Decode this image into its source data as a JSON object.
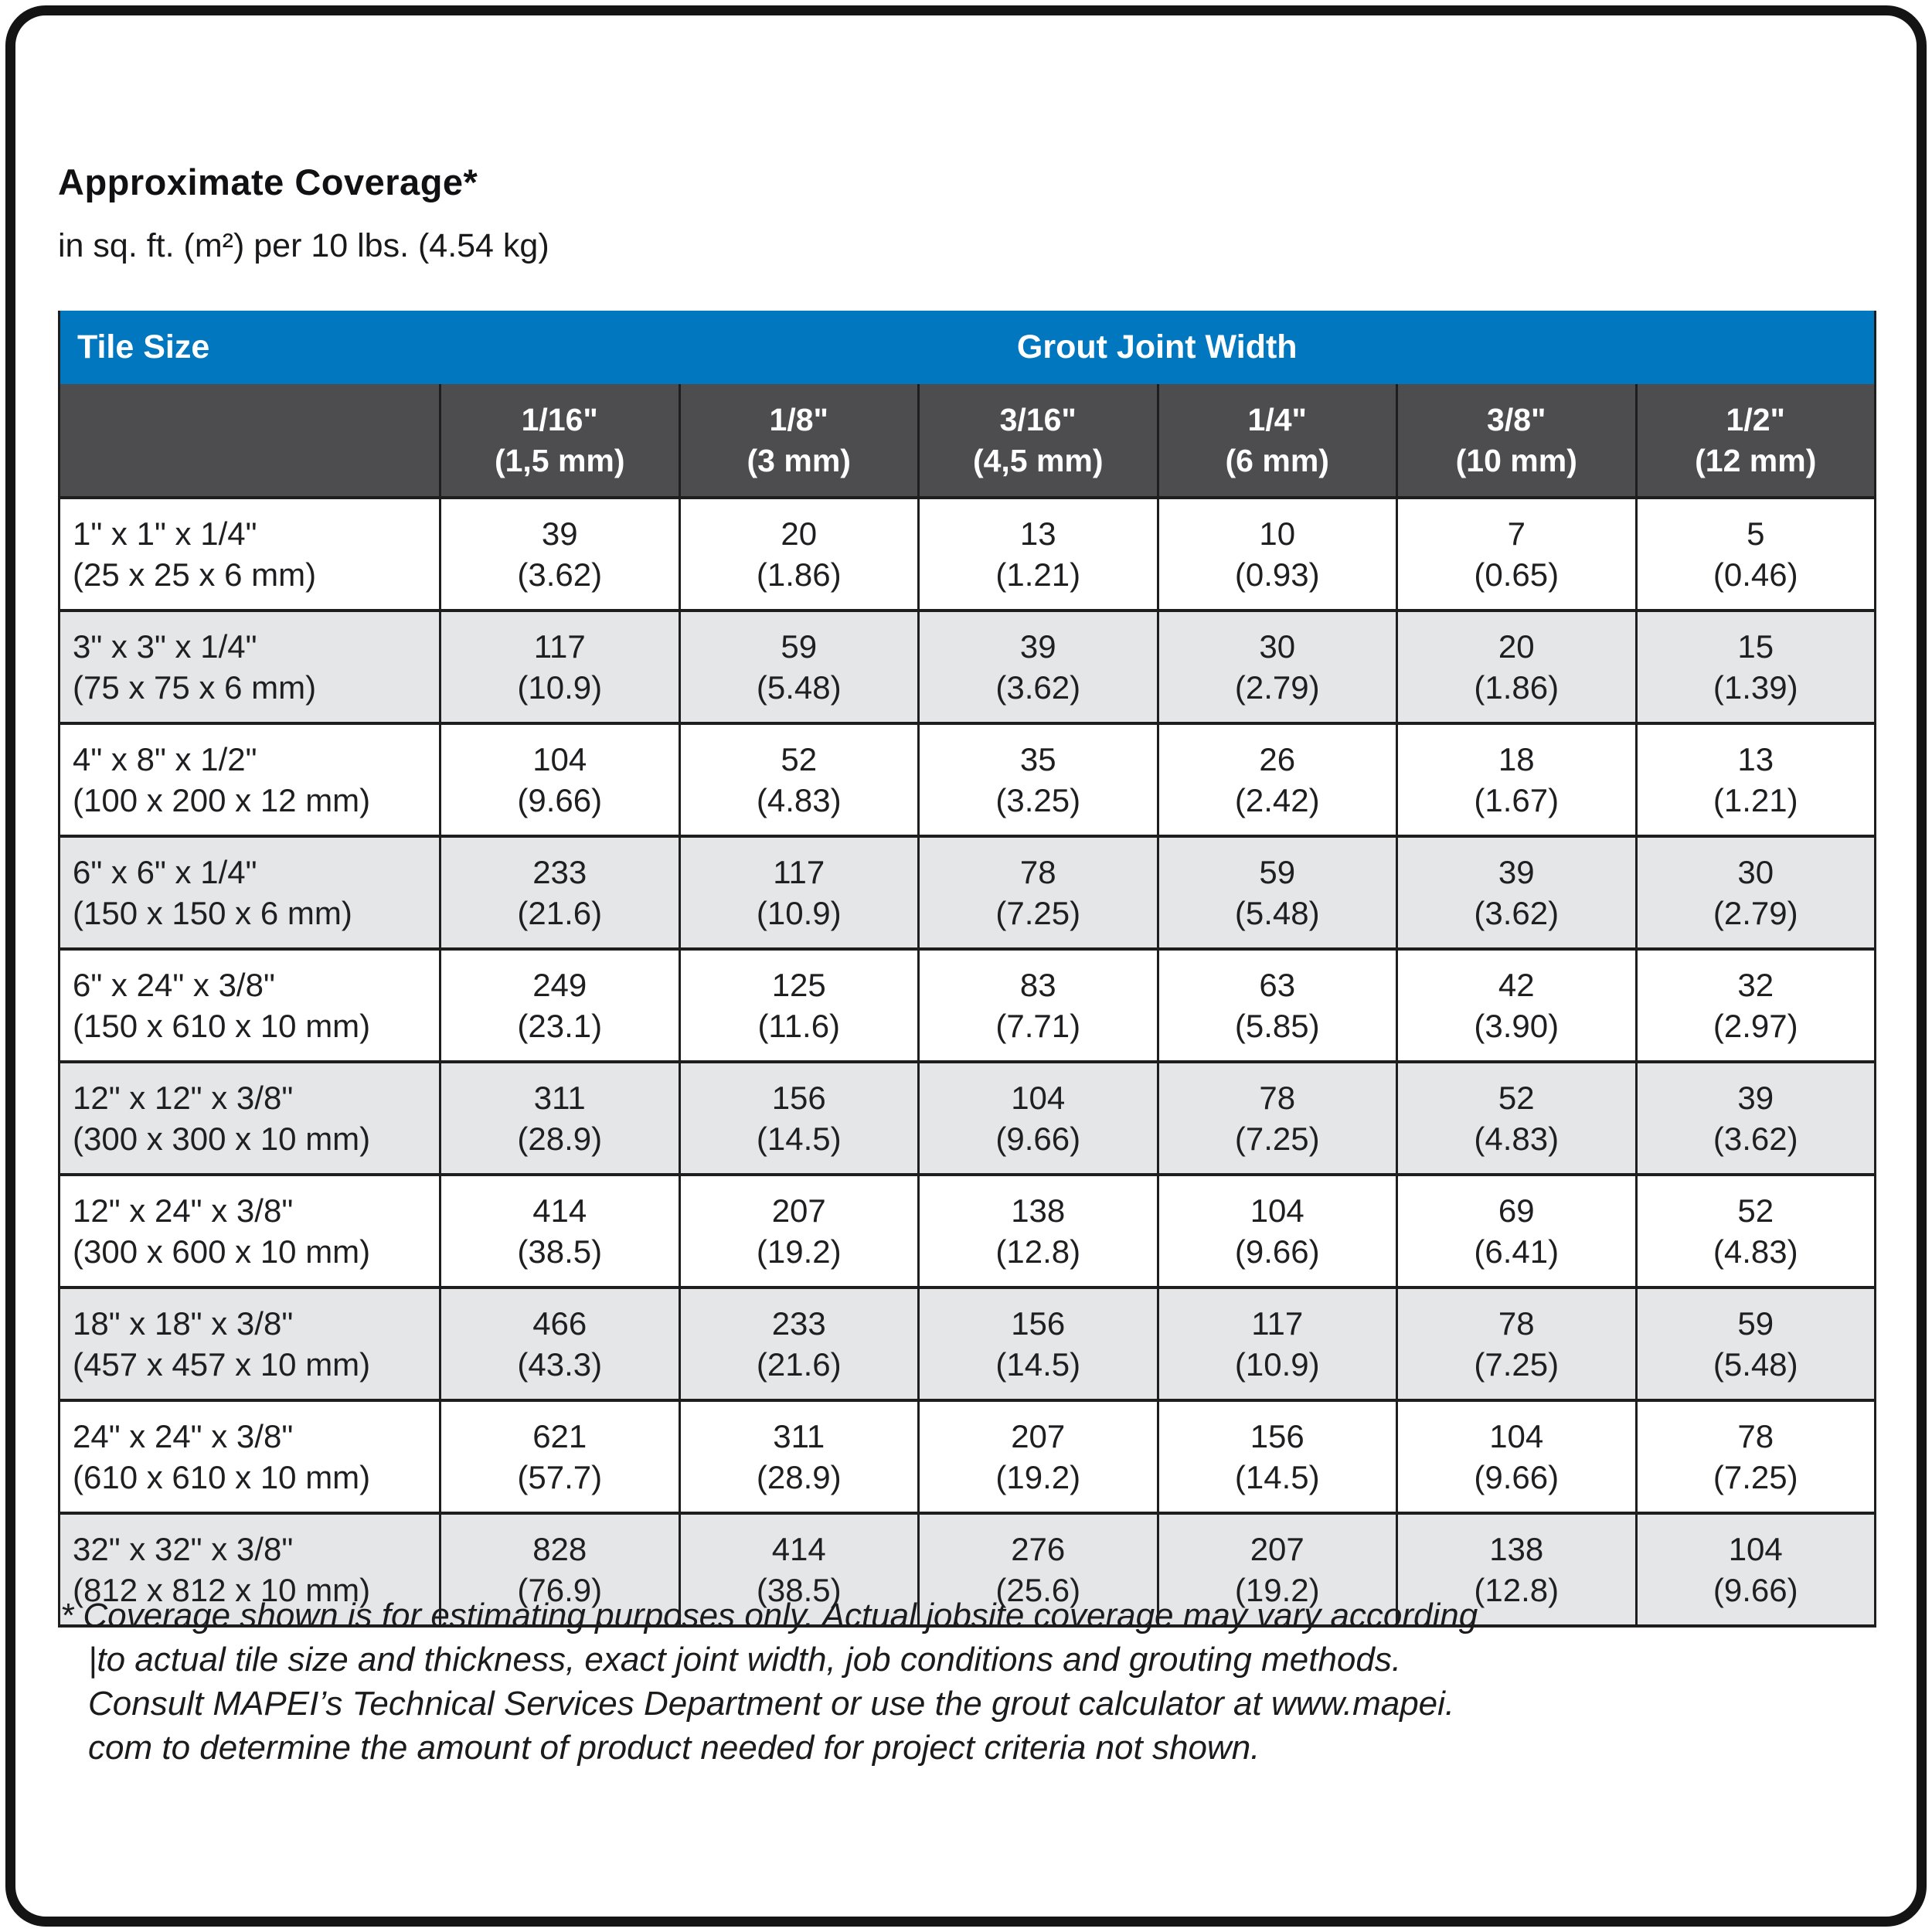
{
  "title": "Approximate Coverage*",
  "subtitle": "in sq. ft. (m²) per 10 lbs. (4.54 kg)",
  "colors": {
    "header_blue": "#0077be",
    "subheader_gray": "#4d4d50",
    "alt_row_gray": "#e5e6e8",
    "line_black": "#1e1e1e"
  },
  "table": {
    "header": {
      "tile_size": "Tile Size",
      "grout_joint_width": "Grout Joint Width"
    },
    "columns": [
      {
        "inch": "1/16\"",
        "mm": "(1,5 mm)"
      },
      {
        "inch": "1/8\"",
        "mm": "(3 mm)"
      },
      {
        "inch": "3/16\"",
        "mm": "(4,5 mm)"
      },
      {
        "inch": "1/4\"",
        "mm": "(6 mm)"
      },
      {
        "inch": "3/8\"",
        "mm": "(10 mm)"
      },
      {
        "inch": "1/2\"",
        "mm": "(12 mm)"
      }
    ],
    "rows": [
      {
        "size": "1\" x 1\" x 1/4\"",
        "metric": "(25 x 25 x 6 mm)",
        "values": [
          {
            "sqft": "39",
            "m2": "(3.62)"
          },
          {
            "sqft": "20",
            "m2": "(1.86)"
          },
          {
            "sqft": "13",
            "m2": "(1.21)"
          },
          {
            "sqft": "10",
            "m2": "(0.93)"
          },
          {
            "sqft": "7",
            "m2": "(0.65)"
          },
          {
            "sqft": "5",
            "m2": "(0.46)"
          }
        ]
      },
      {
        "size": "3\" x 3\" x 1/4\"",
        "metric": "(75 x 75 x 6 mm)",
        "values": [
          {
            "sqft": "117",
            "m2": "(10.9)"
          },
          {
            "sqft": "59",
            "m2": "(5.48)"
          },
          {
            "sqft": "39",
            "m2": "(3.62)"
          },
          {
            "sqft": "30",
            "m2": "(2.79)"
          },
          {
            "sqft": "20",
            "m2": "(1.86)"
          },
          {
            "sqft": "15",
            "m2": "(1.39)"
          }
        ]
      },
      {
        "size": "4\" x 8\" x 1/2\"",
        "metric": "(100 x 200 x 12 mm)",
        "values": [
          {
            "sqft": "104",
            "m2": "(9.66)"
          },
          {
            "sqft": "52",
            "m2": "(4.83)"
          },
          {
            "sqft": "35",
            "m2": "(3.25)"
          },
          {
            "sqft": "26",
            "m2": "(2.42)"
          },
          {
            "sqft": "18",
            "m2": "(1.67)"
          },
          {
            "sqft": "13",
            "m2": "(1.21)"
          }
        ]
      },
      {
        "size": "6\" x 6\" x 1/4\"",
        "metric": "(150 x 150 x 6 mm)",
        "values": [
          {
            "sqft": "233",
            "m2": "(21.6)"
          },
          {
            "sqft": "117",
            "m2": "(10.9)"
          },
          {
            "sqft": "78",
            "m2": "(7.25)"
          },
          {
            "sqft": "59",
            "m2": "(5.48)"
          },
          {
            "sqft": "39",
            "m2": "(3.62)"
          },
          {
            "sqft": "30",
            "m2": "(2.79)"
          }
        ]
      },
      {
        "size": "6\" x 24\" x 3/8\"",
        "metric": "(150 x 610 x 10 mm)",
        "values": [
          {
            "sqft": "249",
            "m2": "(23.1)"
          },
          {
            "sqft": "125",
            "m2": "(11.6)"
          },
          {
            "sqft": "83",
            "m2": "(7.71)"
          },
          {
            "sqft": "63",
            "m2": "(5.85)"
          },
          {
            "sqft": "42",
            "m2": "(3.90)"
          },
          {
            "sqft": "32",
            "m2": "(2.97)"
          }
        ]
      },
      {
        "size": "12\" x 12\" x 3/8\"",
        "metric": "(300 x 300 x 10 mm)",
        "values": [
          {
            "sqft": "311",
            "m2": "(28.9)"
          },
          {
            "sqft": "156",
            "m2": "(14.5)"
          },
          {
            "sqft": "104",
            "m2": "(9.66)"
          },
          {
            "sqft": "78",
            "m2": "(7.25)"
          },
          {
            "sqft": "52",
            "m2": "(4.83)"
          },
          {
            "sqft": "39",
            "m2": "(3.62)"
          }
        ]
      },
      {
        "size": "12\" x 24\" x 3/8\"",
        "metric": "(300 x 600 x 10 mm)",
        "values": [
          {
            "sqft": "414",
            "m2": "(38.5)"
          },
          {
            "sqft": "207",
            "m2": "(19.2)"
          },
          {
            "sqft": "138",
            "m2": "(12.8)"
          },
          {
            "sqft": "104",
            "m2": "(9.66)"
          },
          {
            "sqft": "69",
            "m2": "(6.41)"
          },
          {
            "sqft": "52",
            "m2": "(4.83)"
          }
        ]
      },
      {
        "size": "18\" x 18\" x 3/8\"",
        "metric": "(457 x 457 x 10 mm)",
        "values": [
          {
            "sqft": "466",
            "m2": "(43.3)"
          },
          {
            "sqft": "233",
            "m2": "(21.6)"
          },
          {
            "sqft": "156",
            "m2": "(14.5)"
          },
          {
            "sqft": "117",
            "m2": "(10.9)"
          },
          {
            "sqft": "78",
            "m2": "(7.25)"
          },
          {
            "sqft": "59",
            "m2": "(5.48)"
          }
        ]
      },
      {
        "size": "24\" x 24\" x 3/8\"",
        "metric": "(610 x 610 x 10 mm)",
        "values": [
          {
            "sqft": "621",
            "m2": "(57.7)"
          },
          {
            "sqft": "311",
            "m2": "(28.9)"
          },
          {
            "sqft": "207",
            "m2": "(19.2)"
          },
          {
            "sqft": "156",
            "m2": "(14.5)"
          },
          {
            "sqft": "104",
            "m2": "(9.66)"
          },
          {
            "sqft": "78",
            "m2": "(7.25)"
          }
        ]
      },
      {
        "size": "32\" x 32\" x 3/8\"",
        "metric": "(812 x 812 x 10 mm)",
        "values": [
          {
            "sqft": "828",
            "m2": "(76.9)"
          },
          {
            "sqft": "414",
            "m2": "(38.5)"
          },
          {
            "sqft": "276",
            "m2": "(25.6)"
          },
          {
            "sqft": "207",
            "m2": "(19.2)"
          },
          {
            "sqft": "138",
            "m2": "(12.8)"
          },
          {
            "sqft": "104",
            "m2": "(9.66)"
          }
        ]
      }
    ]
  },
  "footnote": {
    "lines": {
      "0": "* Coverage shown is for estimating purposes only. Actual jobsite coverage may vary according",
      "1": "|to actual tile size and thickness, exact joint width, job conditions and grouting methods.",
      "2": "Consult MAPEI’s Technical Services Department or use the grout calculator at www.mapei.",
      "3": "com to determine the amount of product needed for project criteria not shown."
    }
  }
}
